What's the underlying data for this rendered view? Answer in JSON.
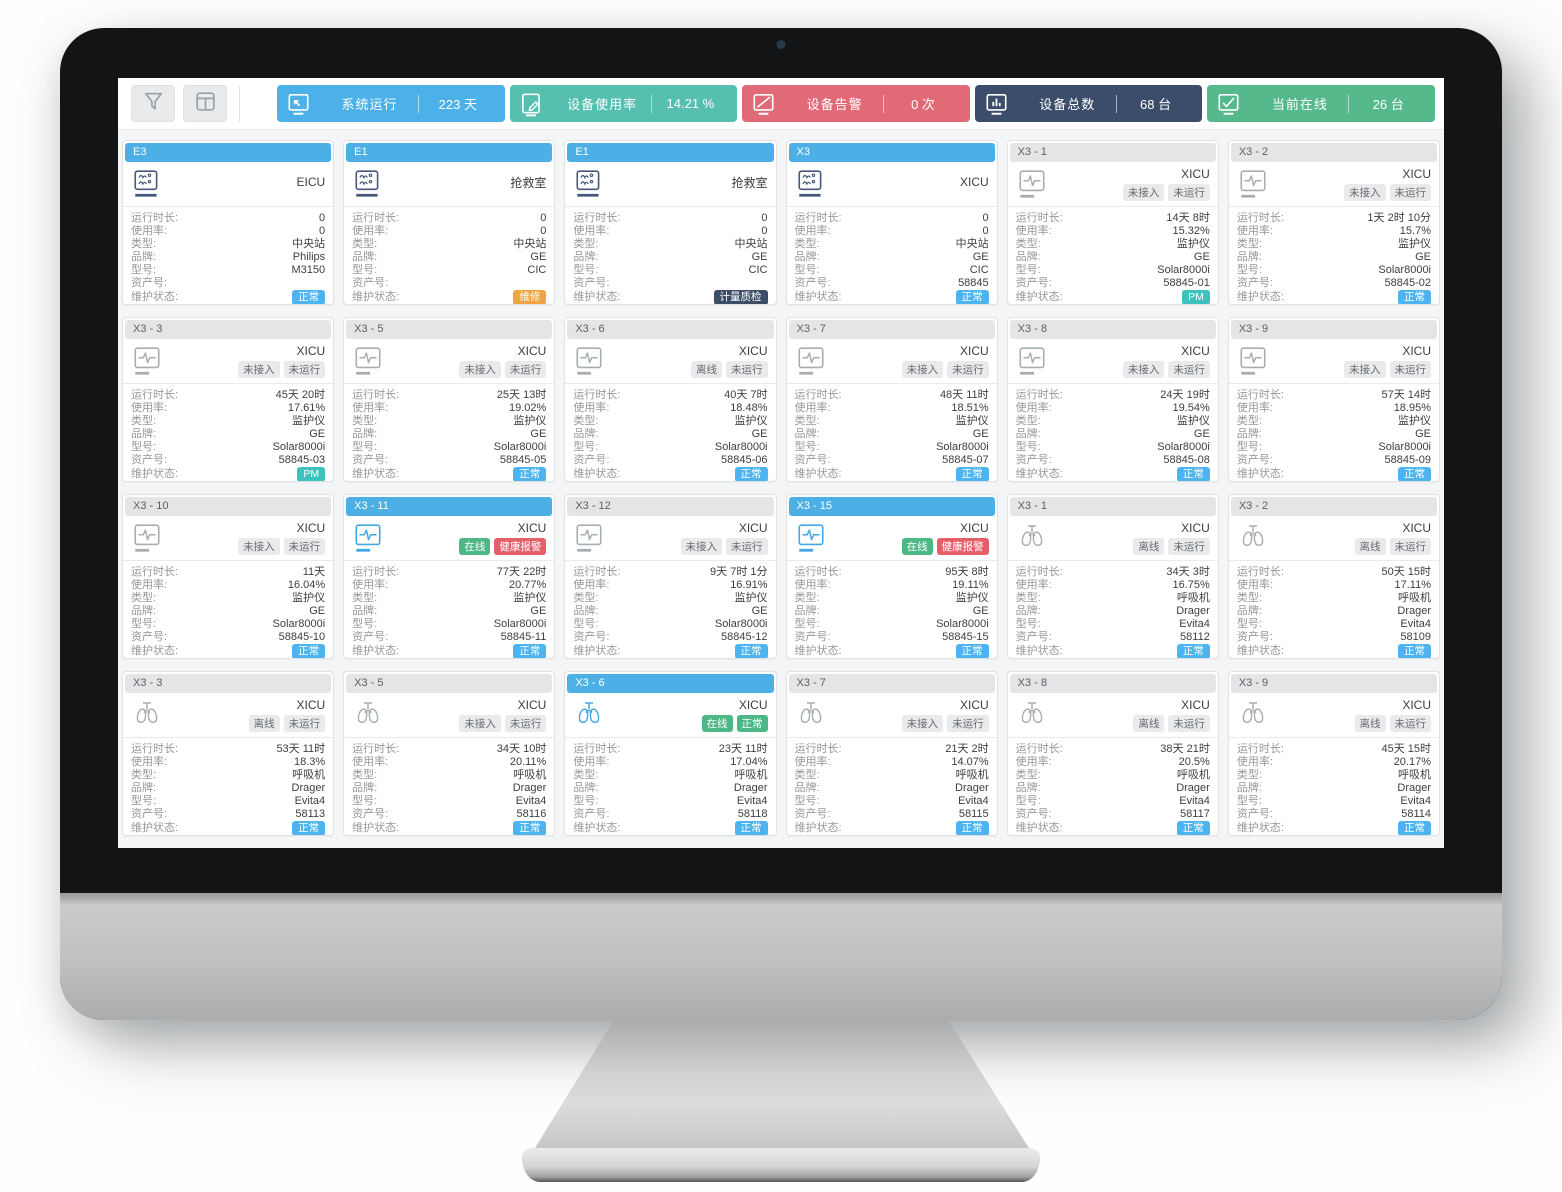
{
  "toolbar": {
    "buttons": [
      {
        "name": "filter-button",
        "icon": "funnel-icon"
      },
      {
        "name": "layout-button",
        "icon": "layout-icon"
      }
    ],
    "stats": [
      {
        "label": "系统运行",
        "value": "223 天",
        "color": "#4cb1e8",
        "icon": "screen-cursor-icon"
      },
      {
        "label": "设备使用率",
        "value": "14.21 %",
        "color": "#56bfb0",
        "icon": "screen-pen-icon"
      },
      {
        "label": "设备告警",
        "value": "0 次",
        "color": "#e06b76",
        "icon": "screen-slash-icon"
      },
      {
        "label": "设备总数",
        "value": "68 台",
        "color": "#3c4d6b",
        "icon": "screen-chart-icon"
      },
      {
        "label": "当前在线",
        "value": "26 台",
        "color": "#55b98b",
        "icon": "screen-check-icon"
      }
    ]
  },
  "field_labels": {
    "runtime": "运行时长:",
    "usage": "使用率:",
    "type": "类型:",
    "brand": "品牌:",
    "model": "型号:",
    "asset": "资产号:",
    "maintenance": "维护状态:"
  },
  "status_colors": {
    "online_green": "#4db886",
    "alarm_red": "#e55f6b",
    "muted_gray": "#e9eaeb"
  },
  "maintenance_colors": {
    "normal": "#4db4ef",
    "repair": "#f0a443",
    "qc": "#3d4d66",
    "pm": "#3fc2bd"
  },
  "cards": [
    {
      "name": "E3",
      "header_online": true,
      "icon": "central-station-icon",
      "icon_color": "navy",
      "location": "EICU",
      "status": [],
      "runtime": "0",
      "usage": "0",
      "type": "中央站",
      "brand": "Philips",
      "model": "M3150",
      "asset": "",
      "maintenance": {
        "text": "正常",
        "style": "normal"
      }
    },
    {
      "name": "E1",
      "header_online": true,
      "icon": "central-station-icon",
      "icon_color": "navy",
      "location": "抢救室",
      "status": [],
      "runtime": "0",
      "usage": "0",
      "type": "中央站",
      "brand": "GE",
      "model": "CIC",
      "asset": "",
      "maintenance": {
        "text": "维修",
        "style": "repair"
      }
    },
    {
      "name": "E1",
      "header_online": true,
      "icon": "central-station-icon",
      "icon_color": "navy",
      "location": "抢救室",
      "status": [],
      "runtime": "0",
      "usage": "0",
      "type": "中央站",
      "brand": "GE",
      "model": "CIC",
      "asset": "",
      "maintenance": {
        "text": "计量质检",
        "style": "qc"
      }
    },
    {
      "name": "X3",
      "header_online": true,
      "icon": "central-station-icon",
      "icon_color": "navy",
      "location": "XICU",
      "status": [],
      "runtime": "0",
      "usage": "0",
      "type": "中央站",
      "brand": "GE",
      "model": "CIC",
      "asset": "58845",
      "maintenance": {
        "text": "正常",
        "style": "normal"
      }
    },
    {
      "name": "X3 - 1",
      "header_online": false,
      "icon": "ecg-monitor-icon",
      "icon_color": "gray",
      "location": "XICU",
      "status": [
        {
          "text": "未接入",
          "style": "muted"
        },
        {
          "text": "未运行",
          "style": "muted"
        }
      ],
      "runtime": "14天 8时",
      "usage": "15.32%",
      "type": "监护仪",
      "brand": "GE",
      "model": "Solar8000i",
      "asset": "58845-01",
      "maintenance": {
        "text": "PM",
        "style": "pm"
      }
    },
    {
      "name": "X3 - 2",
      "header_online": false,
      "icon": "ecg-monitor-icon",
      "icon_color": "gray",
      "location": "XICU",
      "status": [
        {
          "text": "未接入",
          "style": "muted"
        },
        {
          "text": "未运行",
          "style": "muted"
        }
      ],
      "runtime": "1天 2时 10分",
      "usage": "15.7%",
      "type": "监护仪",
      "brand": "GE",
      "model": "Solar8000i",
      "asset": "58845-02",
      "maintenance": {
        "text": "正常",
        "style": "normal"
      }
    },
    {
      "name": "X3 - 3",
      "header_online": false,
      "icon": "ecg-monitor-icon",
      "icon_color": "gray",
      "location": "XICU",
      "status": [
        {
          "text": "未接入",
          "style": "muted"
        },
        {
          "text": "未运行",
          "style": "muted"
        }
      ],
      "runtime": "45天 20时",
      "usage": "17.61%",
      "type": "监护仪",
      "brand": "GE",
      "model": "Solar8000i",
      "asset": "58845-03",
      "maintenance": {
        "text": "PM",
        "style": "pm"
      }
    },
    {
      "name": "X3 - 5",
      "header_online": false,
      "icon": "ecg-monitor-icon",
      "icon_color": "gray",
      "location": "XICU",
      "status": [
        {
          "text": "未接入",
          "style": "muted"
        },
        {
          "text": "未运行",
          "style": "muted"
        }
      ],
      "runtime": "25天 13时",
      "usage": "19.02%",
      "type": "监护仪",
      "brand": "GE",
      "model": "Solar8000i",
      "asset": "58845-05",
      "maintenance": {
        "text": "正常",
        "style": "normal"
      }
    },
    {
      "name": "X3 - 6",
      "header_online": false,
      "icon": "ecg-monitor-icon",
      "icon_color": "gray",
      "location": "XICU",
      "status": [
        {
          "text": "离线",
          "style": "muted"
        },
        {
          "text": "未运行",
          "style": "muted"
        }
      ],
      "runtime": "40天 7时",
      "usage": "18.48%",
      "type": "监护仪",
      "brand": "GE",
      "model": "Solar8000i",
      "asset": "58845-06",
      "maintenance": {
        "text": "正常",
        "style": "normal"
      }
    },
    {
      "name": "X3 - 7",
      "header_online": false,
      "icon": "ecg-monitor-icon",
      "icon_color": "gray",
      "location": "XICU",
      "status": [
        {
          "text": "未接入",
          "style": "muted"
        },
        {
          "text": "未运行",
          "style": "muted"
        }
      ],
      "runtime": "48天 11时",
      "usage": "18.51%",
      "type": "监护仪",
      "brand": "GE",
      "model": "Solar8000i",
      "asset": "58845-07",
      "maintenance": {
        "text": "正常",
        "style": "normal"
      }
    },
    {
      "name": "X3 - 8",
      "header_online": false,
      "icon": "ecg-monitor-icon",
      "icon_color": "gray",
      "location": "XICU",
      "status": [
        {
          "text": "未接入",
          "style": "muted"
        },
        {
          "text": "未运行",
          "style": "muted"
        }
      ],
      "runtime": "24天 19时",
      "usage": "19.54%",
      "type": "监护仪",
      "brand": "GE",
      "model": "Solar8000i",
      "asset": "58845-08",
      "maintenance": {
        "text": "正常",
        "style": "normal"
      }
    },
    {
      "name": "X3 - 9",
      "header_online": false,
      "icon": "ecg-monitor-icon",
      "icon_color": "gray",
      "location": "XICU",
      "status": [
        {
          "text": "未接入",
          "style": "muted"
        },
        {
          "text": "未运行",
          "style": "muted"
        }
      ],
      "runtime": "57天 14时",
      "usage": "18.95%",
      "type": "监护仪",
      "brand": "GE",
      "model": "Solar8000i",
      "asset": "58845-09",
      "maintenance": {
        "text": "正常",
        "style": "normal"
      }
    },
    {
      "name": "X3 - 10",
      "header_online": false,
      "icon": "ecg-monitor-icon",
      "icon_color": "gray",
      "location": "XICU",
      "status": [
        {
          "text": "未接入",
          "style": "muted"
        },
        {
          "text": "未运行",
          "style": "muted"
        }
      ],
      "runtime": "11天",
      "usage": "16.04%",
      "type": "监护仪",
      "brand": "GE",
      "model": "Solar8000i",
      "asset": "58845-10",
      "maintenance": {
        "text": "正常",
        "style": "normal"
      }
    },
    {
      "name": "X3 - 11",
      "header_online": true,
      "icon": "ecg-monitor-icon",
      "icon_color": "blue",
      "location": "XICU",
      "status": [
        {
          "text": "在线",
          "style": "online"
        },
        {
          "text": "健康报警",
          "style": "alarm"
        }
      ],
      "runtime": "77天 22时",
      "usage": "20.77%",
      "type": "监护仪",
      "brand": "GE",
      "model": "Solar8000i",
      "asset": "58845-11",
      "maintenance": {
        "text": "正常",
        "style": "normal"
      }
    },
    {
      "name": "X3 - 12",
      "header_online": false,
      "icon": "ecg-monitor-icon",
      "icon_color": "gray",
      "location": "XICU",
      "status": [
        {
          "text": "未接入",
          "style": "muted"
        },
        {
          "text": "未运行",
          "style": "muted"
        }
      ],
      "runtime": "9天 7时 1分",
      "usage": "16.91%",
      "type": "监护仪",
      "brand": "GE",
      "model": "Solar8000i",
      "asset": "58845-12",
      "maintenance": {
        "text": "正常",
        "style": "normal"
      }
    },
    {
      "name": "X3 - 15",
      "header_online": true,
      "icon": "ecg-monitor-icon",
      "icon_color": "blue",
      "location": "XICU",
      "status": [
        {
          "text": "在线",
          "style": "online"
        },
        {
          "text": "健康报警",
          "style": "alarm"
        }
      ],
      "runtime": "95天 8时",
      "usage": "19.11%",
      "type": "监护仪",
      "brand": "GE",
      "model": "Solar8000i",
      "asset": "58845-15",
      "maintenance": {
        "text": "正常",
        "style": "normal"
      }
    },
    {
      "name": "X3 - 1",
      "header_online": false,
      "icon": "lungs-icon",
      "icon_color": "gray",
      "location": "XICU",
      "status": [
        {
          "text": "离线",
          "style": "muted"
        },
        {
          "text": "未运行",
          "style": "muted"
        }
      ],
      "runtime": "34天 3时",
      "usage": "16.75%",
      "type": "呼吸机",
      "brand": "Drager",
      "model": "Evita4",
      "asset": "58112",
      "maintenance": {
        "text": "正常",
        "style": "normal"
      }
    },
    {
      "name": "X3 - 2",
      "header_online": false,
      "icon": "lungs-icon",
      "icon_color": "gray",
      "location": "XICU",
      "status": [
        {
          "text": "离线",
          "style": "muted"
        },
        {
          "text": "未运行",
          "style": "muted"
        }
      ],
      "runtime": "50天 15时",
      "usage": "17.11%",
      "type": "呼吸机",
      "brand": "Drager",
      "model": "Evita4",
      "asset": "58109",
      "maintenance": {
        "text": "正常",
        "style": "normal"
      }
    },
    {
      "name": "X3 - 3",
      "header_online": false,
      "icon": "lungs-icon",
      "icon_color": "gray",
      "location": "XICU",
      "status": [
        {
          "text": "离线",
          "style": "muted"
        },
        {
          "text": "未运行",
          "style": "muted"
        }
      ],
      "runtime": "53天 11时",
      "usage": "18.3%",
      "type": "呼吸机",
      "brand": "Drager",
      "model": "Evita4",
      "asset": "58113",
      "maintenance": {
        "text": "正常",
        "style": "normal"
      }
    },
    {
      "name": "X3 - 5",
      "header_online": false,
      "icon": "lungs-icon",
      "icon_color": "gray",
      "location": "XICU",
      "status": [
        {
          "text": "未接入",
          "style": "muted"
        },
        {
          "text": "未运行",
          "style": "muted"
        }
      ],
      "runtime": "34天 10时",
      "usage": "20.11%",
      "type": "呼吸机",
      "brand": "Drager",
      "model": "Evita4",
      "asset": "58116",
      "maintenance": {
        "text": "正常",
        "style": "normal"
      }
    },
    {
      "name": "X3 - 6",
      "header_online": true,
      "icon": "lungs-icon",
      "icon_color": "blue",
      "location": "XICU",
      "status": [
        {
          "text": "在线",
          "style": "online"
        },
        {
          "text": "正常",
          "style": "online"
        }
      ],
      "runtime": "23天 11时",
      "usage": "17.04%",
      "type": "呼吸机",
      "brand": "Drager",
      "model": "Evita4",
      "asset": "58118",
      "maintenance": {
        "text": "正常",
        "style": "normal"
      }
    },
    {
      "name": "X3 - 7",
      "header_online": false,
      "icon": "lungs-icon",
      "icon_color": "gray",
      "location": "XICU",
      "status": [
        {
          "text": "未接入",
          "style": "muted"
        },
        {
          "text": "未运行",
          "style": "muted"
        }
      ],
      "runtime": "21天 2时",
      "usage": "14.07%",
      "type": "呼吸机",
      "brand": "Drager",
      "model": "Evita4",
      "asset": "58115",
      "maintenance": {
        "text": "正常",
        "style": "normal"
      }
    },
    {
      "name": "X3 - 8",
      "header_online": false,
      "icon": "lungs-icon",
      "icon_color": "gray",
      "location": "XICU",
      "status": [
        {
          "text": "离线",
          "style": "muted"
        },
        {
          "text": "未运行",
          "style": "muted"
        }
      ],
      "runtime": "38天 21时",
      "usage": "20.5%",
      "type": "呼吸机",
      "brand": "Drager",
      "model": "Evita4",
      "asset": "58117",
      "maintenance": {
        "text": "正常",
        "style": "normal"
      }
    },
    {
      "name": "X3 - 9",
      "header_online": false,
      "icon": "lungs-icon",
      "icon_color": "gray",
      "location": "XICU",
      "status": [
        {
          "text": "离线",
          "style": "muted"
        },
        {
          "text": "未运行",
          "style": "muted"
        }
      ],
      "runtime": "45天 15时",
      "usage": "20.17%",
      "type": "呼吸机",
      "brand": "Drager",
      "model": "Evita4",
      "asset": "58114",
      "maintenance": {
        "text": "正常",
        "style": "normal"
      }
    }
  ]
}
